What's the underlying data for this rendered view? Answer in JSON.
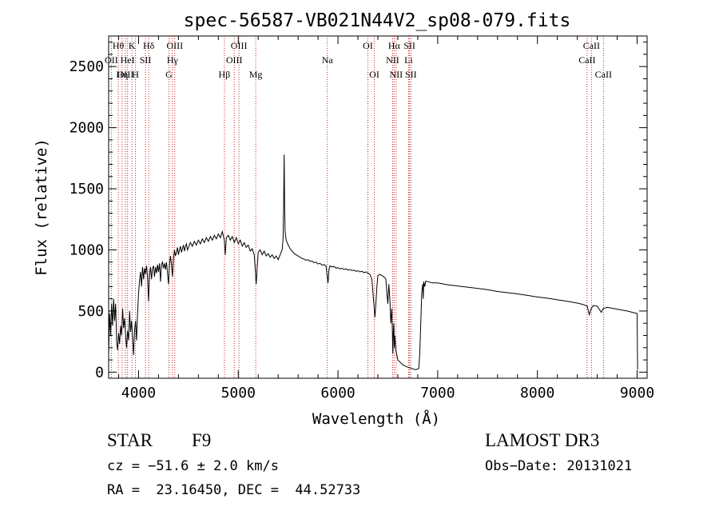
{
  "chart_data": {
    "type": "line",
    "title": "spec-56587-VB021N44V2_sp08-079.fits",
    "xlabel": "Wavelength (Å)",
    "ylabel": "Flux (relative)",
    "xlim": [
      3700,
      9100
    ],
    "ylim": [
      -50,
      2750
    ],
    "x_ticks": [
      4000,
      5000,
      6000,
      7000,
      8000,
      9000
    ],
    "y_ticks": [
      0,
      500,
      1000,
      1500,
      2000,
      2500
    ],
    "grid": false,
    "line_color": "#000000",
    "marker_color": "#cc2222",
    "series": [
      {
        "points": [
          [
            3700,
            150
          ],
          [
            3710,
            480
          ],
          [
            3720,
            300
          ],
          [
            3730,
            560
          ],
          [
            3740,
            380
          ],
          [
            3750,
            600
          ],
          [
            3760,
            420
          ],
          [
            3770,
            560
          ],
          [
            3780,
            250
          ],
          [
            3790,
            180
          ],
          [
            3800,
            320
          ],
          [
            3810,
            230
          ],
          [
            3820,
            380
          ],
          [
            3830,
            300
          ],
          [
            3840,
            520
          ],
          [
            3850,
            360
          ],
          [
            3860,
            440
          ],
          [
            3870,
            300
          ],
          [
            3880,
            200
          ],
          [
            3890,
            340
          ],
          [
            3900,
            260
          ],
          [
            3910,
            500
          ],
          [
            3920,
            330
          ],
          [
            3930,
            420
          ],
          [
            3940,
            280
          ],
          [
            3950,
            140
          ],
          [
            3960,
            350
          ],
          [
            3970,
            420
          ],
          [
            3980,
            260
          ],
          [
            3990,
            480
          ],
          [
            4000,
            640
          ],
          [
            4010,
            750
          ],
          [
            4020,
            820
          ],
          [
            4030,
            700
          ],
          [
            4040,
            860
          ],
          [
            4050,
            760
          ],
          [
            4060,
            850
          ],
          [
            4070,
            800
          ],
          [
            4080,
            870
          ],
          [
            4090,
            780
          ],
          [
            4100,
            580
          ],
          [
            4110,
            800
          ],
          [
            4120,
            860
          ],
          [
            4130,
            760
          ],
          [
            4140,
            850
          ],
          [
            4150,
            870
          ],
          [
            4160,
            780
          ],
          [
            4170,
            860
          ],
          [
            4180,
            810
          ],
          [
            4190,
            880
          ],
          [
            4200,
            820
          ],
          [
            4210,
            890
          ],
          [
            4220,
            740
          ],
          [
            4230,
            880
          ],
          [
            4240,
            900
          ],
          [
            4250,
            850
          ],
          [
            4260,
            890
          ],
          [
            4270,
            840
          ],
          [
            4280,
            900
          ],
          [
            4290,
            820
          ],
          [
            4300,
            720
          ],
          [
            4310,
            880
          ],
          [
            4320,
            950
          ],
          [
            4330,
            880
          ],
          [
            4340,
            780
          ],
          [
            4350,
            920
          ],
          [
            4360,
            1000
          ],
          [
            4370,
            950
          ],
          [
            4380,
            980
          ],
          [
            4390,
            1020
          ],
          [
            4400,
            960
          ],
          [
            4410,
            1000
          ],
          [
            4420,
            1030
          ],
          [
            4430,
            980
          ],
          [
            4440,
            1010
          ],
          [
            4450,
            1040
          ],
          [
            4460,
            990
          ],
          [
            4470,
            1030
          ],
          [
            4480,
            1050
          ],
          [
            4490,
            1000
          ],
          [
            4500,
            1020
          ],
          [
            4520,
            1060
          ],
          [
            4540,
            1030
          ],
          [
            4560,
            1070
          ],
          [
            4580,
            1040
          ],
          [
            4600,
            1080
          ],
          [
            4620,
            1050
          ],
          [
            4640,
            1090
          ],
          [
            4660,
            1060
          ],
          [
            4680,
            1100
          ],
          [
            4700,
            1070
          ],
          [
            4720,
            1110
          ],
          [
            4740,
            1080
          ],
          [
            4760,
            1120
          ],
          [
            4780,
            1090
          ],
          [
            4800,
            1130
          ],
          [
            4820,
            1100
          ],
          [
            4840,
            1150
          ],
          [
            4860,
            1080
          ],
          [
            4870,
            960
          ],
          [
            4880,
            1100
          ],
          [
            4900,
            1120
          ],
          [
            4920,
            1080
          ],
          [
            4940,
            1110
          ],
          [
            4960,
            1060
          ],
          [
            4980,
            1100
          ],
          [
            5000,
            1050
          ],
          [
            5020,
            1080
          ],
          [
            5040,
            1030
          ],
          [
            5060,
            1060
          ],
          [
            5080,
            1020
          ],
          [
            5100,
            1040
          ],
          [
            5120,
            990
          ],
          [
            5140,
            1010
          ],
          [
            5160,
            960
          ],
          [
            5170,
            840
          ],
          [
            5180,
            720
          ],
          [
            5190,
            860
          ],
          [
            5200,
            980
          ],
          [
            5220,
            1000
          ],
          [
            5240,
            960
          ],
          [
            5260,
            990
          ],
          [
            5280,
            950
          ],
          [
            5300,
            970
          ],
          [
            5320,
            940
          ],
          [
            5340,
            960
          ],
          [
            5360,
            930
          ],
          [
            5380,
            950
          ],
          [
            5400,
            920
          ],
          [
            5420,
            960
          ],
          [
            5440,
            1000
          ],
          [
            5450,
            1100
          ],
          [
            5455,
            1400
          ],
          [
            5460,
            1780
          ],
          [
            5465,
            1350
          ],
          [
            5470,
            1150
          ],
          [
            5480,
            1080
          ],
          [
            5500,
            1040
          ],
          [
            5520,
            1010
          ],
          [
            5540,
            990
          ],
          [
            5560,
            970
          ],
          [
            5580,
            960
          ],
          [
            5600,
            950
          ],
          [
            5620,
            940
          ],
          [
            5640,
            930
          ],
          [
            5660,
            925
          ],
          [
            5680,
            915
          ],
          [
            5700,
            920
          ],
          [
            5720,
            905
          ],
          [
            5740,
            910
          ],
          [
            5760,
            895
          ],
          [
            5780,
            900
          ],
          [
            5800,
            885
          ],
          [
            5820,
            890
          ],
          [
            5840,
            875
          ],
          [
            5860,
            880
          ],
          [
            5880,
            870
          ],
          [
            5890,
            800
          ],
          [
            5900,
            730
          ],
          [
            5910,
            840
          ],
          [
            5920,
            870
          ],
          [
            5940,
            860
          ],
          [
            5960,
            865
          ],
          [
            5980,
            850
          ],
          [
            6000,
            855
          ],
          [
            6020,
            845
          ],
          [
            6040,
            850
          ],
          [
            6060,
            840
          ],
          [
            6080,
            845
          ],
          [
            6100,
            835
          ],
          [
            6120,
            840
          ],
          [
            6140,
            830
          ],
          [
            6160,
            835
          ],
          [
            6180,
            825
          ],
          [
            6200,
            830
          ],
          [
            6220,
            820
          ],
          [
            6240,
            825
          ],
          [
            6260,
            815
          ],
          [
            6280,
            820
          ],
          [
            6300,
            810
          ],
          [
            6320,
            800
          ],
          [
            6340,
            760
          ],
          [
            6350,
            650
          ],
          [
            6360,
            560
          ],
          [
            6370,
            450
          ],
          [
            6380,
            560
          ],
          [
            6390,
            700
          ],
          [
            6400,
            790
          ],
          [
            6420,
            800
          ],
          [
            6440,
            790
          ],
          [
            6460,
            780
          ],
          [
            6480,
            760
          ],
          [
            6490,
            650
          ],
          [
            6500,
            560
          ],
          [
            6510,
            720
          ],
          [
            6520,
            600
          ],
          [
            6530,
            400
          ],
          [
            6540,
            520
          ],
          [
            6545,
            350
          ],
          [
            6550,
            150
          ],
          [
            6555,
            320
          ],
          [
            6560,
            400
          ],
          [
            6565,
            200
          ],
          [
            6570,
            300
          ],
          [
            6580,
            180
          ],
          [
            6600,
            100
          ],
          [
            6650,
            60
          ],
          [
            6700,
            40
          ],
          [
            6740,
            30
          ],
          [
            6780,
            20
          ],
          [
            6810,
            30
          ],
          [
            6820,
            150
          ],
          [
            6830,
            400
          ],
          [
            6840,
            650
          ],
          [
            6850,
            720
          ],
          [
            6855,
            600
          ],
          [
            6860,
            740
          ],
          [
            6870,
            700
          ],
          [
            6880,
            745
          ],
          [
            6900,
            740
          ],
          [
            6950,
            730
          ],
          [
            7000,
            730
          ],
          [
            7100,
            715
          ],
          [
            7200,
            705
          ],
          [
            7300,
            695
          ],
          [
            7400,
            685
          ],
          [
            7500,
            675
          ],
          [
            7600,
            660
          ],
          [
            7700,
            650
          ],
          [
            7800,
            640
          ],
          [
            7900,
            628
          ],
          [
            8000,
            615
          ],
          [
            8100,
            605
          ],
          [
            8200,
            592
          ],
          [
            8300,
            580
          ],
          [
            8400,
            565
          ],
          [
            8450,
            555
          ],
          [
            8500,
            540
          ],
          [
            8520,
            470
          ],
          [
            8540,
            520
          ],
          [
            8560,
            545
          ],
          [
            8600,
            540
          ],
          [
            8640,
            490
          ],
          [
            8660,
            520
          ],
          [
            8700,
            530
          ],
          [
            8800,
            515
          ],
          [
            8900,
            500
          ],
          [
            8950,
            490
          ],
          [
            9000,
            480
          ],
          [
            9005,
            20
          ]
        ]
      }
    ],
    "markers": [
      {
        "label": "Hθ",
        "x": 3797,
        "row": 0
      },
      {
        "label": "OII",
        "x": 3727,
        "row": 1
      },
      {
        "label": "OIII",
        "x": 3869,
        "row": 2
      },
      {
        "label": "HeI",
        "x": 3889,
        "row": 1
      },
      {
        "label": "Hη",
        "x": 3835,
        "row": 2
      },
      {
        "label": "K",
        "x": 3934,
        "row": 0
      },
      {
        "label": "H",
        "x": 3969,
        "row": 2
      },
      {
        "label": "SII",
        "x": 4069,
        "row": 1
      },
      {
        "label": "Hδ",
        "x": 4102,
        "row": 0
      },
      {
        "label": "OIII",
        "x": 4363,
        "row": 0
      },
      {
        "label": "Hγ",
        "x": 4340,
        "row": 1
      },
      {
        "label": "G",
        "x": 4305,
        "row": 2
      },
      {
        "label": "OIII",
        "x": 5007,
        "row": 0
      },
      {
        "label": "OIII",
        "x": 4959,
        "row": 1
      },
      {
        "label": "Hβ",
        "x": 4861,
        "row": 2
      },
      {
        "label": "Mg",
        "x": 5175,
        "row": 2
      },
      {
        "label": "Na",
        "x": 5893,
        "row": 1
      },
      {
        "label": "OI",
        "x": 6300,
        "row": 0
      },
      {
        "label": "OI",
        "x": 6364,
        "row": 2
      },
      {
        "label": "Hα",
        "x": 6563,
        "row": 0
      },
      {
        "label": "SII",
        "x": 6717,
        "row": 0
      },
      {
        "label": "NII",
        "x": 6548,
        "row": 1
      },
      {
        "label": "Li",
        "x": 6708,
        "row": 1
      },
      {
        "label": "NII",
        "x": 6583,
        "row": 2
      },
      {
        "label": "SII",
        "x": 6731,
        "row": 2
      },
      {
        "label": "CaII",
        "x": 8542,
        "row": 0
      },
      {
        "label": "CaII",
        "x": 8498,
        "row": 1
      },
      {
        "label": "CaII",
        "x": 8662,
        "row": 2
      }
    ]
  },
  "info": {
    "object_class": "STAR",
    "subclass": "F9",
    "survey": "LAMOST DR3",
    "cz": "cz = −51.6 ± 2.0 km/s",
    "obs_date": "Obs−Date: 20131021",
    "coords": "RA =  23.16450, DEC =  44.52733"
  }
}
